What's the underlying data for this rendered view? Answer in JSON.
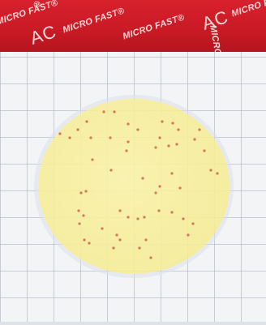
{
  "banner": {
    "brand_text": "MICRO FAST",
    "registered_mark": "®",
    "product_code": "AC",
    "color": "#c81a25"
  },
  "plate": {
    "medium_color": "#f6eca0",
    "colony_color": "#c8644a"
  }
}
